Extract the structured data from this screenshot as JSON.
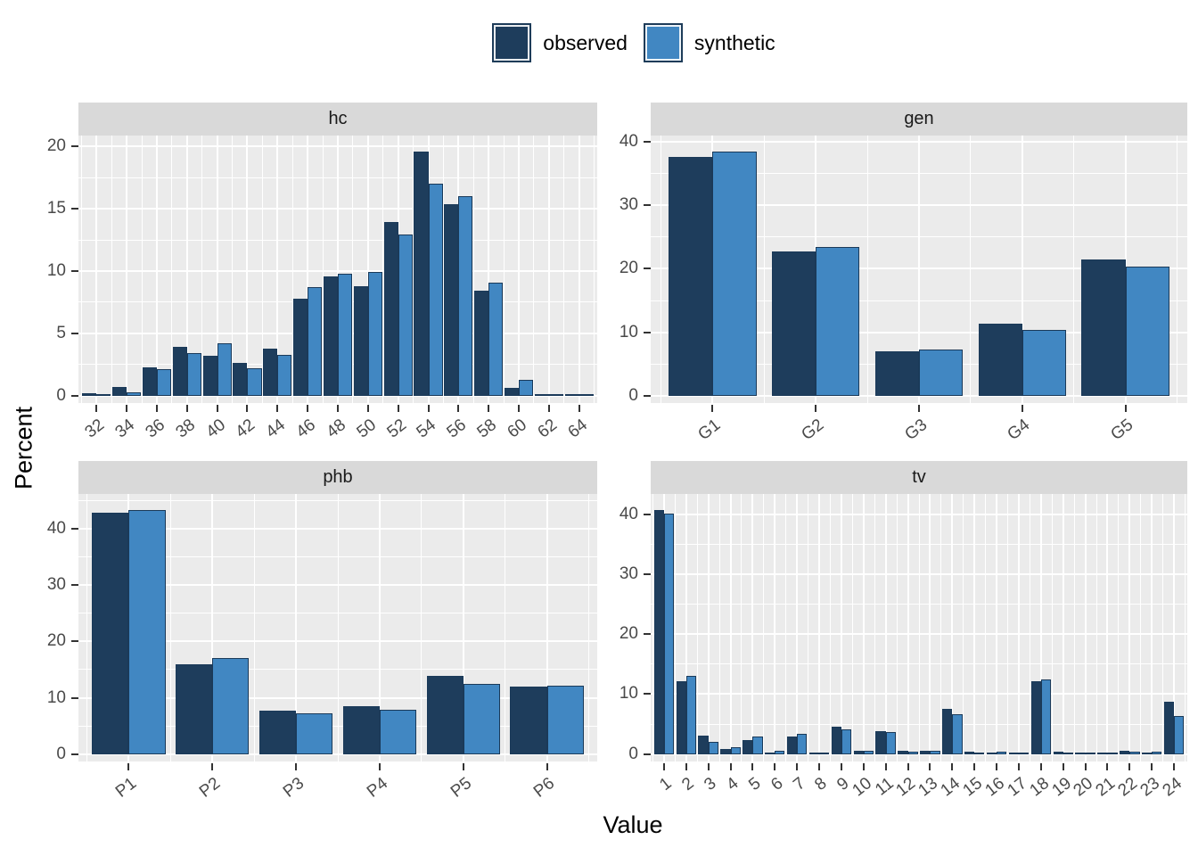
{
  "titles": {
    "y": "Percent",
    "x": "Value"
  },
  "legend": {
    "position": "top",
    "items": [
      {
        "label": "observed",
        "color": "#1e3d5c"
      },
      {
        "label": "synthetic",
        "color": "#4187c2"
      }
    ]
  },
  "colors": {
    "panel_background": "#ebebeb",
    "strip_background": "#d9d9d9",
    "gridline": "#ffffff",
    "bar_border": "#1b3a59",
    "axis_text": "#4a4a4a",
    "tick_mark": "#333333",
    "title_text": "#000000"
  },
  "chart_data": [
    {
      "type": "bar",
      "facet": "hc",
      "categories": [
        "32",
        "34",
        "36",
        "38",
        "40",
        "42",
        "44",
        "46",
        "48",
        "50",
        "52",
        "54",
        "56",
        "58",
        "60",
        "62",
        "64"
      ],
      "series": [
        {
          "name": "observed",
          "values": [
            0.2,
            0.7,
            2.3,
            3.9,
            3.2,
            2.6,
            3.8,
            7.8,
            9.6,
            8.8,
            13.9,
            19.6,
            15.4,
            8.4,
            0.6,
            0.15,
            0.15
          ]
        },
        {
          "name": "synthetic",
          "values": [
            0.1,
            0.3,
            2.1,
            3.4,
            4.2,
            2.2,
            3.3,
            8.7,
            9.8,
            9.9,
            12.9,
            17.0,
            16.0,
            9.1,
            1.3,
            0.15,
            0.15
          ]
        }
      ],
      "yticks": [
        0,
        5,
        10,
        15,
        20
      ],
      "ylim": [
        0,
        20.6
      ],
      "grid": true,
      "group_frac": 0.95
    },
    {
      "type": "bar",
      "facet": "gen",
      "categories": [
        "G1",
        "G2",
        "G3",
        "G4",
        "G5"
      ],
      "series": [
        {
          "name": "observed",
          "values": [
            37.7,
            22.8,
            7.0,
            11.4,
            21.5
          ]
        },
        {
          "name": "synthetic",
          "values": [
            38.5,
            23.4,
            7.3,
            10.4,
            20.3
          ]
        }
      ],
      "yticks": [
        0,
        10,
        20,
        30,
        40
      ],
      "ylim": [
        0,
        41
      ],
      "grid": true,
      "group_frac": 0.85
    },
    {
      "type": "bar",
      "facet": "phb",
      "categories": [
        "P1",
        "P2",
        "P3",
        "P4",
        "P5",
        "P6"
      ],
      "series": [
        {
          "name": "observed",
          "values": [
            42.8,
            16.0,
            7.7,
            8.5,
            13.9,
            12.0
          ]
        },
        {
          "name": "synthetic",
          "values": [
            43.3,
            17.0,
            7.2,
            7.9,
            12.5,
            12.2
          ]
        }
      ],
      "yticks": [
        0,
        10,
        20,
        30,
        40
      ],
      "ylim": [
        0,
        46
      ],
      "grid": true,
      "group_frac": 0.88
    },
    {
      "type": "bar",
      "facet": "tv",
      "categories": [
        "1",
        "2",
        "3",
        "4",
        "5",
        "6",
        "7",
        "8",
        "9",
        "10",
        "11",
        "12",
        "13",
        "14",
        "15",
        "16",
        "17",
        "18",
        "19",
        "20",
        "21",
        "22",
        "23",
        "24"
      ],
      "series": [
        {
          "name": "observed",
          "values": [
            40.7,
            12.1,
            3.1,
            0.9,
            2.3,
            0.25,
            2.9,
            0.3,
            4.6,
            0.5,
            3.9,
            0.5,
            0.6,
            7.5,
            0.4,
            0.3,
            0.25,
            12.2,
            0.4,
            0.3,
            0.25,
            0.5,
            0.3,
            8.7
          ]
        },
        {
          "name": "synthetic",
          "values": [
            40.1,
            13.0,
            2.1,
            1.2,
            3.0,
            0.5,
            3.4,
            0.3,
            4.1,
            0.6,
            3.7,
            0.4,
            0.5,
            6.6,
            0.3,
            0.4,
            0.2,
            12.4,
            0.3,
            0.2,
            0.2,
            0.4,
            0.35,
            6.4
          ]
        }
      ],
      "yticks": [
        0,
        10,
        20,
        30,
        40
      ],
      "ylim": [
        0,
        43
      ],
      "grid": true,
      "group_frac": 0.9
    }
  ]
}
